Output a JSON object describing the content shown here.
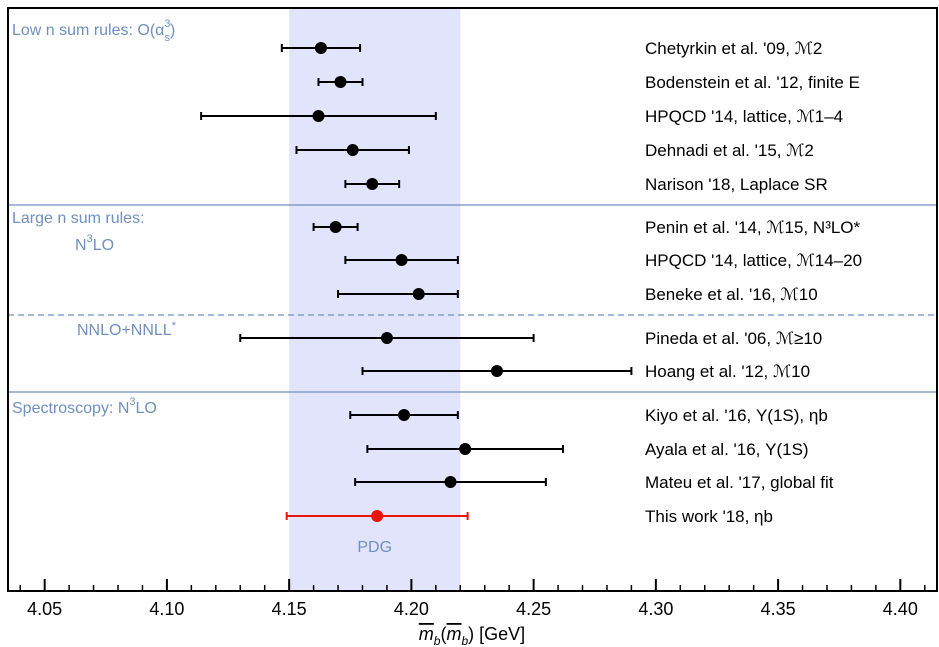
{
  "chart_data": {
    "type": "scatter",
    "subtype": "error-bar forest plot",
    "xlabel": "m̅b(m̅b) [GeV]",
    "xlim": [
      4.035,
      4.415
    ],
    "x_ticks": [
      "4.05",
      "4.10",
      "4.15",
      "4.20",
      "4.25",
      "4.30",
      "4.35",
      "4.40"
    ],
    "band": {
      "label": "PDG",
      "from": 4.15,
      "to": 4.22,
      "color": "#e2e4fb"
    },
    "sections": [
      {
        "label": "Low n sum rules: O(αs³)",
        "label_lines": [
          "Low n sum rules: O(α",
          "3",
          "s",
          ")"
        ]
      },
      {
        "label_lines": [
          "Large n sum rules:",
          "N",
          "3",
          "LO"
        ]
      },
      {
        "label_lines": [
          "NNLO+NNLL",
          "*"
        ]
      },
      {
        "label_lines": [
          "Spectroscopy: N",
          "3",
          "LO"
        ]
      }
    ],
    "series": [
      {
        "name": "Chetyrkin et al. '09, ℳ2",
        "value": 4.163,
        "low": 4.147,
        "high": 4.179
      },
      {
        "name": "Bodenstein et al. '12, finite E",
        "value": 4.171,
        "low": 4.162,
        "high": 4.18
      },
      {
        "name": "HPQCD '14, lattice, ℳ1–4",
        "value": 4.162,
        "low": 4.114,
        "high": 4.21
      },
      {
        "name": "Dehnadi et al. '15, ℳ2",
        "value": 4.176,
        "low": 4.153,
        "high": 4.199
      },
      {
        "name": "Narison '18, Laplace SR",
        "value": 4.184,
        "low": 4.173,
        "high": 4.195
      },
      {
        "name": "Penin et al. '14, ℳ15, N³LO*",
        "value": 4.169,
        "low": 4.16,
        "high": 4.178
      },
      {
        "name": "HPQCD '14, lattice, ℳ14–20",
        "value": 4.196,
        "low": 4.173,
        "high": 4.219
      },
      {
        "name": "Beneke et al. '16, ℳ10",
        "value": 4.203,
        "low": 4.17,
        "high": 4.219
      },
      {
        "name": "Pineda et al. '06, ℳ≥10",
        "value": 4.19,
        "low": 4.13,
        "high": 4.25
      },
      {
        "name": "Hoang et al. '12, ℳ10",
        "value": 4.235,
        "low": 4.18,
        "high": 4.29
      },
      {
        "name": "Kiyo et al. '16, Υ(1S), ηb",
        "value": 4.197,
        "low": 4.175,
        "high": 4.219
      },
      {
        "name": "Ayala et al. '16, Υ(1S)",
        "value": 4.222,
        "low": 4.182,
        "high": 4.262
      },
      {
        "name": "Mateu et al. '17, global fit",
        "value": 4.216,
        "low": 4.177,
        "high": 4.255
      },
      {
        "name": "This work '18, ηb",
        "value": 4.186,
        "low": 4.149,
        "high": 4.223,
        "color": "#e8140e"
      }
    ],
    "grid": false,
    "legend": "none"
  }
}
